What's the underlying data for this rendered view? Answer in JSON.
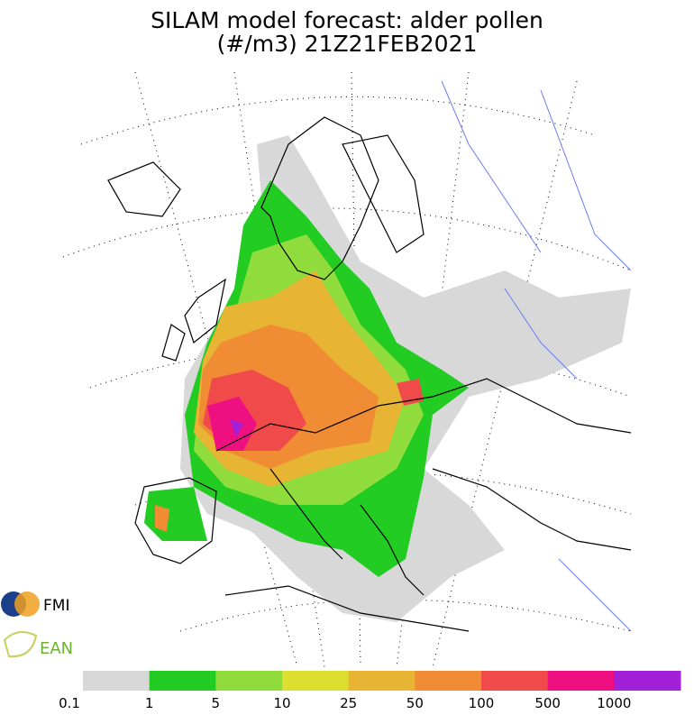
{
  "header": {
    "title": [
      "SILAM model forecast: alder pollen",
      "(#/m3) 21Z21FEB2021"
    ]
  },
  "logos": [
    "FMI",
    "EAN"
  ],
  "legend": {
    "colors": [
      "#d8d8d8",
      "#22cc22",
      "#8fdc3c",
      "#dede30",
      "#e8b434",
      "#f08c34",
      "#f04a4a",
      "#ee1080",
      "#a220d8"
    ],
    "labels": [
      "0.1",
      "1",
      "5",
      "10",
      "25",
      "50",
      "100",
      "500",
      "1000"
    ]
  }
}
